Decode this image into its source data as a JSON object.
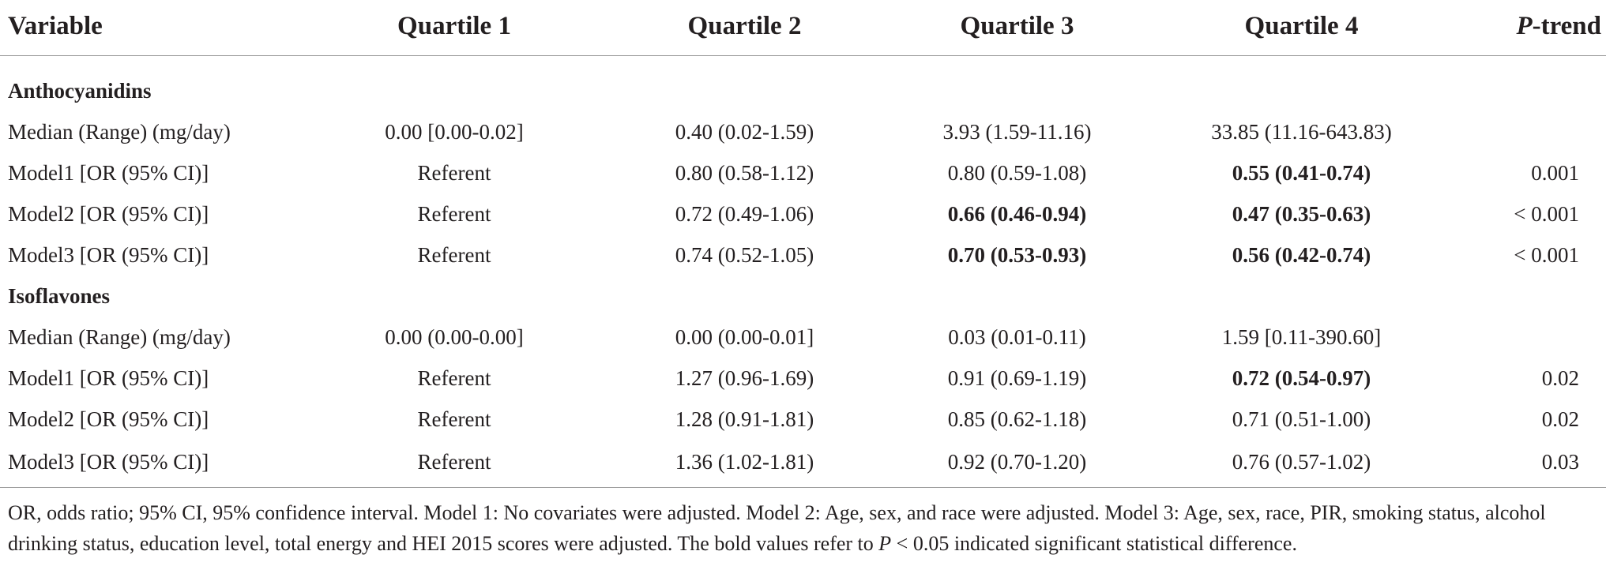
{
  "header": {
    "variable": "Variable",
    "q1": "Quartile 1",
    "q2": "Quartile 2",
    "q3": "Quartile 3",
    "q4": "Quartile 4",
    "ptrend_italic": "P",
    "ptrend_rest": "-trend"
  },
  "sections": [
    {
      "title": "Anthocyanidins",
      "rows": [
        {
          "label": "Median (Range) (mg/day)",
          "q1": "0.00 [0.00-0.02]",
          "q2": "0.40 (0.02-1.59)",
          "q3": "3.93 (1.59-11.16)",
          "q4": "33.85 (11.16-643.83)",
          "p": "",
          "bold": []
        },
        {
          "label": "Model1 [OR (95% CI)]",
          "q1": "Referent",
          "q2": "0.80 (0.58-1.12)",
          "q3": "0.80 (0.59-1.08)",
          "q4": "0.55 (0.41-0.74)",
          "p": "0.001",
          "bold": [
            "q4"
          ]
        },
        {
          "label": "Model2 [OR (95% CI)]",
          "q1": "Referent",
          "q2": "0.72 (0.49-1.06)",
          "q3": "0.66 (0.46-0.94)",
          "q4": "0.47 (0.35-0.63)",
          "p": "< 0.001",
          "bold": [
            "q3",
            "q4"
          ]
        },
        {
          "label": "Model3 [OR (95% CI)]",
          "q1": "Referent",
          "q2": "0.74 (0.52-1.05)",
          "q3": "0.70 (0.53-0.93)",
          "q4": "0.56 (0.42-0.74)",
          "p": "< 0.001",
          "bold": [
            "q3",
            "q4"
          ]
        }
      ]
    },
    {
      "title": "Isoflavones",
      "rows": [
        {
          "label": "Median (Range) (mg/day)",
          "q1": "0.00 (0.00-0.00]",
          "q2": "0.00 (0.00-0.01]",
          "q3": "0.03 (0.01-0.11)",
          "q4": "1.59 [0.11-390.60]",
          "p": "",
          "bold": []
        },
        {
          "label": "Model1 [OR (95% CI)]",
          "q1": "Referent",
          "q2": "1.27 (0.96-1.69)",
          "q3": "0.91 (0.69-1.19)",
          "q4": "0.72 (0.54-0.97)",
          "p": "0.02",
          "bold": [
            "q4"
          ]
        },
        {
          "label": "Model2 [OR (95% CI)]",
          "q1": "Referent",
          "q2": "1.28 (0.91-1.81)",
          "q3": "0.85 (0.62-1.18)",
          "q4": "0.71 (0.51-1.00)",
          "p": "0.02",
          "bold": []
        },
        {
          "label": "Model3 [OR (95% CI)]",
          "q1": "Referent",
          "q2": "1.36 (1.02-1.81)",
          "q3": "0.92 (0.70-1.20)",
          "q4": "0.76 (0.57-1.02)",
          "p": "0.03",
          "bold": []
        }
      ]
    }
  ],
  "footnote": {
    "part1": "OR, odds ratio; 95% CI, 95% confidence interval. Model 1: No covariates were adjusted. Model 2: Age, sex, and race were adjusted. Model 3: Age, sex, race, PIR, smoking status, alcohol drinking status, education level, total energy and HEI 2015 scores were adjusted. The bold values refer to ",
    "p_italic": "P",
    "part2": " < 0.05 indicated significant statistical difference."
  }
}
